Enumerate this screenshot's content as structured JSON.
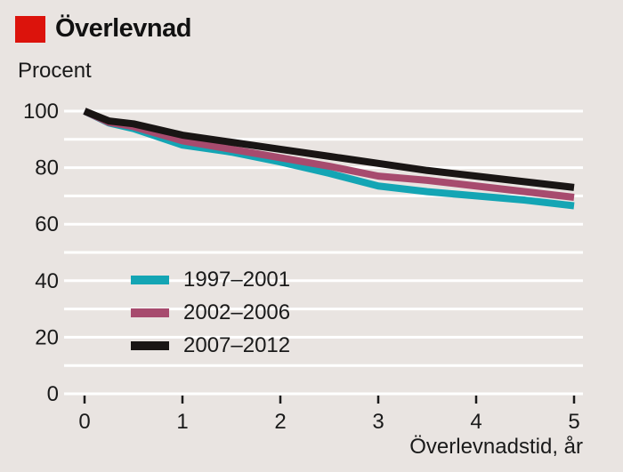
{
  "header": {
    "title": "Överlevnad",
    "accent_color": "#dc130c"
  },
  "chart_data": {
    "type": "line",
    "title": "Överlevnad",
    "ylabel": "Procent",
    "xlabel": "Överlevnadstid, år",
    "x": [
      0,
      0.25,
      0.5,
      1,
      1.5,
      2,
      2.5,
      3,
      3.5,
      4,
      4.5,
      5
    ],
    "series": [
      {
        "name": "1997–2001",
        "color": "#14a5b4",
        "values": [
          100,
          95.8,
          93.8,
          88,
          85.5,
          82,
          78,
          73.5,
          71.5,
          70,
          68.5,
          66.5
        ]
      },
      {
        "name": "2002–2006",
        "color": "#a74b6e",
        "values": [
          100,
          96,
          94.5,
          89.5,
          86.5,
          83.5,
          80.5,
          77,
          75.5,
          73.5,
          71.5,
          69.5
        ]
      },
      {
        "name": "2007–2012",
        "color": "#191514",
        "values": [
          100,
          96.5,
          95.5,
          91.5,
          89,
          86.5,
          84,
          81.5,
          79,
          77,
          75,
          73
        ]
      }
    ],
    "xlim": [
      0,
      5
    ],
    "ylim": [
      0,
      100
    ],
    "x_ticks": [
      0,
      1,
      2,
      3,
      4,
      5
    ],
    "y_tick_labels": [
      0,
      20,
      40,
      60,
      80,
      100
    ],
    "y_gridline_step": 10,
    "grid": true,
    "legend_position": "center-left",
    "background_color": "#e9e4e1",
    "gridline_color": "#ffffff",
    "text_color": "#1a1a1a"
  }
}
